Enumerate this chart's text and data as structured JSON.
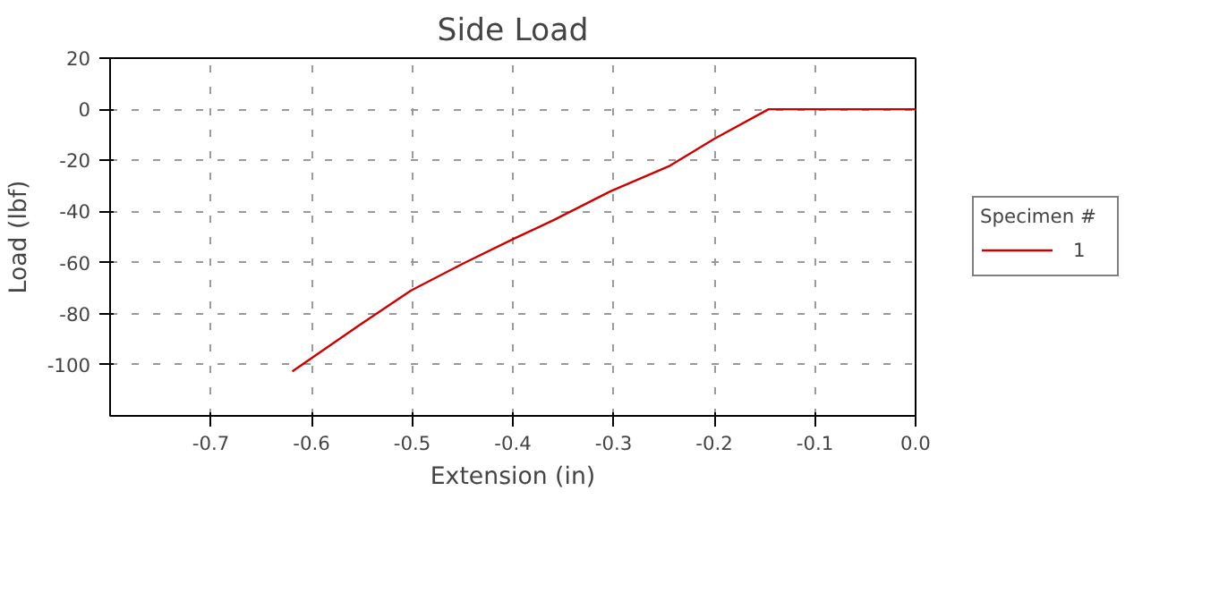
{
  "chart_data": {
    "type": "line",
    "title": "Side Load",
    "xlabel": "Extension (in)",
    "ylabel": "Load (lbf)",
    "series": [
      {
        "name": "1",
        "color": "#cc0000",
        "x": [
          -0.619,
          -0.552,
          -0.501,
          -0.45,
          -0.398,
          -0.36,
          -0.303,
          -0.244,
          -0.2,
          -0.146,
          0.0
        ],
        "values": [
          -102.6,
          -84.4,
          -70.9,
          -60.5,
          -50.5,
          -43.5,
          -32.1,
          -22.1,
          -11.6,
          0,
          0
        ]
      }
    ],
    "xlim": [
      -0.8,
      0.0
    ],
    "xticks": [
      -0.7,
      -0.6,
      -0.5,
      -0.4,
      -0.3,
      -0.2,
      -0.1,
      {
        "value": 0,
        "label": "0.0"
      }
    ],
    "ylim": [
      -120,
      20
    ],
    "yticks": [
      20,
      0,
      -20,
      -40,
      -60,
      -80,
      -100
    ],
    "grid": true,
    "legend": "right",
    "legend_title": "Specimen #",
    "marker": "none",
    "line_style": "solid"
  }
}
